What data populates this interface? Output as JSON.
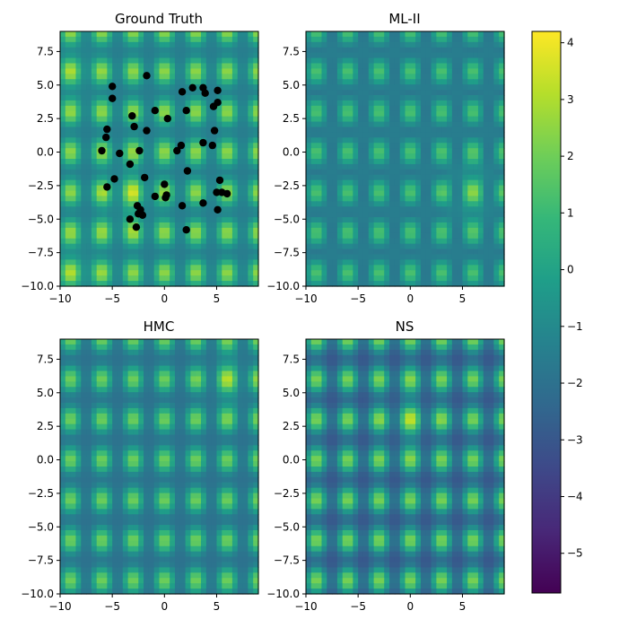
{
  "chart_data": [
    {
      "type": "heatmap",
      "title": "Ground Truth",
      "xlabel": "",
      "ylabel": "",
      "xlim": [
        -10,
        9
      ],
      "ylim": [
        -10,
        9
      ],
      "xticks": [
        -10,
        -5,
        0,
        5
      ],
      "yticks": [
        -10.0,
        -7.5,
        -5.0,
        -2.5,
        0.0,
        2.5,
        5.0,
        7.5
      ],
      "xtick_labels": [
        "−10",
        "−5",
        "0",
        "5"
      ],
      "ytick_labels": [
        "−10.0",
        "−7.5",
        "−5.0",
        "−2.5",
        "0.0",
        "2.5",
        "5.0",
        "7.5"
      ],
      "field": {
        "kind": "ground_truth",
        "ax": 1.1,
        "ay": 1.0,
        "bias": -0.3,
        "cx": -3.5,
        "cy": -3.5
      },
      "points": [
        [
          -1.7,
          5.7
        ],
        [
          -5.0,
          4.9
        ],
        [
          2.7,
          4.8
        ],
        [
          3.7,
          4.8
        ],
        [
          3.9,
          4.4
        ],
        [
          1.7,
          4.5
        ],
        [
          5.1,
          4.6
        ],
        [
          -5.0,
          4.0
        ],
        [
          5.1,
          3.7
        ],
        [
          4.7,
          3.4
        ],
        [
          -0.9,
          3.1
        ],
        [
          2.1,
          3.1
        ],
        [
          -3.1,
          2.7
        ],
        [
          0.3,
          2.5
        ],
        [
          -5.5,
          1.7
        ],
        [
          -2.9,
          1.9
        ],
        [
          -1.7,
          1.6
        ],
        [
          4.8,
          1.6
        ],
        [
          -5.6,
          1.1
        ],
        [
          3.7,
          0.7
        ],
        [
          4.6,
          0.5
        ],
        [
          1.6,
          0.5
        ],
        [
          1.2,
          0.1
        ],
        [
          -6.0,
          0.1
        ],
        [
          -2.4,
          0.1
        ],
        [
          -4.3,
          -0.1
        ],
        [
          -3.3,
          -0.9
        ],
        [
          2.2,
          -1.4
        ],
        [
          -1.9,
          -1.9
        ],
        [
          -4.8,
          -2.0
        ],
        [
          5.3,
          -2.1
        ],
        [
          0.0,
          -2.4
        ],
        [
          -5.5,
          -2.6
        ],
        [
          5.0,
          -3.0
        ],
        [
          5.5,
          -3.0
        ],
        [
          6.0,
          -3.1
        ],
        [
          0.2,
          -3.2
        ],
        [
          -0.9,
          -3.3
        ],
        [
          0.1,
          -3.4
        ],
        [
          3.7,
          -3.8
        ],
        [
          -2.6,
          -4.0
        ],
        [
          1.7,
          -4.0
        ],
        [
          -2.3,
          -4.3
        ],
        [
          5.1,
          -4.3
        ],
        [
          -2.5,
          -4.6
        ],
        [
          -2.1,
          -4.7
        ],
        [
          -3.3,
          -5.0
        ],
        [
          -2.7,
          -5.6
        ],
        [
          2.1,
          -5.8
        ]
      ]
    },
    {
      "type": "heatmap",
      "title": "ML-II",
      "xlabel": "",
      "ylabel": "",
      "xlim": [
        -10,
        9
      ],
      "ylim": [
        -10,
        9
      ],
      "xticks": [
        -10,
        -5,
        0,
        5
      ],
      "yticks": [
        -10.0,
        -7.5,
        -5.0,
        -2.5,
        0.0,
        2.5,
        5.0,
        7.5
      ],
      "xtick_labels": [
        "−10",
        "−5",
        "0",
        "5"
      ],
      "ytick_labels": [
        "−10.0",
        "−7.5",
        "−5.0",
        "−2.5",
        "0.0",
        "2.5",
        "5.0",
        "7.5"
      ],
      "field": {
        "kind": "ml2",
        "ax": 0.8,
        "ay": 0.7,
        "bias": -0.9,
        "cx": 6,
        "cy": -3
      }
    },
    {
      "type": "heatmap",
      "title": "HMC",
      "xlabel": "",
      "ylabel": "",
      "xlim": [
        -10,
        9
      ],
      "ylim": [
        -10,
        9
      ],
      "xticks": [
        -10,
        -5,
        0,
        5
      ],
      "yticks": [
        -10.0,
        -7.5,
        -5.0,
        -2.5,
        0.0,
        2.5,
        5.0,
        7.5
      ],
      "xtick_labels": [
        "−10",
        "−5",
        "0",
        "5"
      ],
      "ytick_labels": [
        "−10.0",
        "−7.5",
        "−5.0",
        "−2.5",
        "0.0",
        "2.5",
        "5.0",
        "7.5"
      ],
      "field": {
        "kind": "hmc",
        "ax": 1.1,
        "ay": 1.0,
        "bias": -0.8,
        "cx": 6.5,
        "cy": 6
      }
    },
    {
      "type": "heatmap",
      "title": "NS",
      "xlabel": "",
      "ylabel": "",
      "xlim": [
        -10,
        9
      ],
      "ylim": [
        -10,
        9
      ],
      "xticks": [
        -10,
        -5,
        0,
        5
      ],
      "yticks": [
        -10.0,
        -7.5,
        -5.0,
        -2.5,
        0.0,
        2.5,
        5.0,
        7.5
      ],
      "xtick_labels": [
        "−10",
        "−5",
        "0",
        "5"
      ],
      "ytick_labels": [
        "−10.0",
        "−7.5",
        "−5.0",
        "−2.5",
        "0.0",
        "2.5",
        "5.0",
        "7.5"
      ],
      "field": {
        "kind": "ns",
        "ax": 1.4,
        "ay": 1.3,
        "bias": -1.2,
        "cx": 0,
        "cy": 3
      }
    }
  ],
  "colorbar": {
    "colormap": "viridis",
    "min": -5.7,
    "max": 4.2,
    "ticks": [
      -5,
      -4,
      -3,
      -2,
      -1,
      0,
      1,
      2,
      3,
      4
    ],
    "tick_labels": [
      "−5",
      "−4",
      "−3",
      "−2",
      "−1",
      "0",
      "1",
      "2",
      "3",
      "4"
    ]
  },
  "colors": {
    "point": "#000000",
    "viridis": [
      "#440154",
      "#482878",
      "#3e4989",
      "#31688e",
      "#26828e",
      "#1f9e89",
      "#35b779",
      "#6ece58",
      "#b5de2b",
      "#fde725"
    ]
  }
}
